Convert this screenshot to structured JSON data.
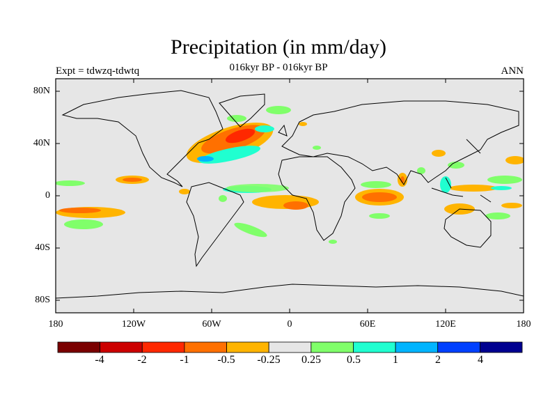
{
  "title": "Precipitation (in mm/day)",
  "subtitle": "016kyr BP - 016kyr BP",
  "left_label": "Expt = tdwzq-tdwtq",
  "right_label": "ANN",
  "y_ticks": [
    "80N",
    "40N",
    "0",
    "40S",
    "80S"
  ],
  "x_ticks": [
    "180",
    "120W",
    "60W",
    "0",
    "60E",
    "120E",
    "180"
  ],
  "colorbar": {
    "colors": [
      "#7a0000",
      "#cc0000",
      "#ff2800",
      "#ff7000",
      "#ffb400",
      "#e6e6e6",
      "#80ff6a",
      "#20ffd0",
      "#00b4ff",
      "#0040ff",
      "#000090"
    ],
    "labels": [
      "-4",
      "-2",
      "-1",
      "-0.5",
      "-0.25",
      "0.25",
      "0.5",
      "1",
      "2",
      "4"
    ]
  }
}
